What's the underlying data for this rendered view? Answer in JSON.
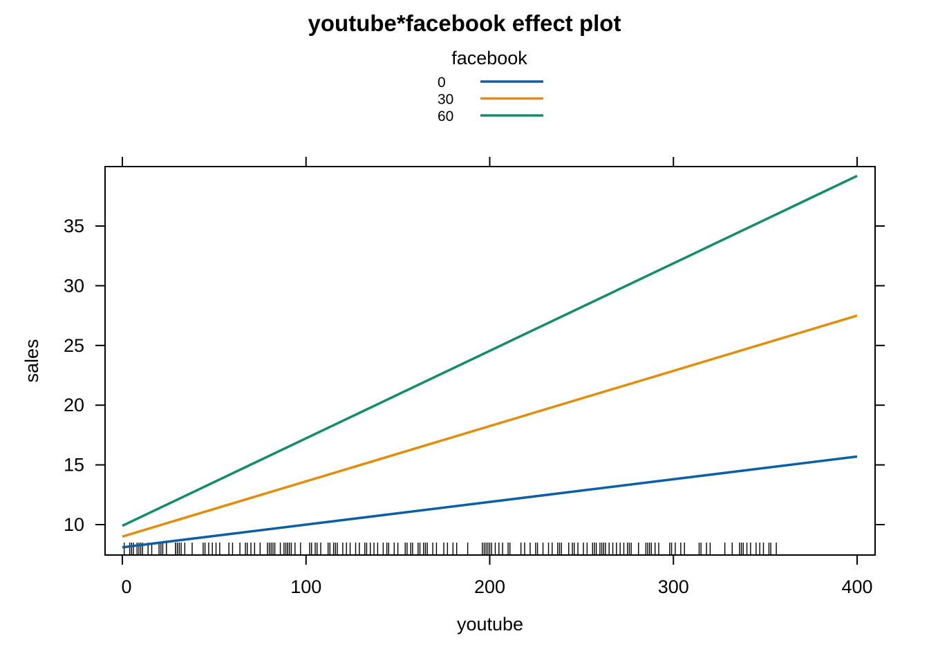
{
  "chart_data": {
    "type": "line",
    "title": "youtube*facebook effect plot",
    "xlabel": "youtube",
    "ylabel": "sales",
    "xlim": [
      -10,
      410
    ],
    "ylim": [
      7.4,
      40
    ],
    "x_ticks": [
      0,
      100,
      200,
      300,
      400
    ],
    "y_ticks": [
      10,
      15,
      20,
      25,
      30,
      35
    ],
    "grid": false,
    "legend": {
      "title": "facebook",
      "placement": "top",
      "entries": [
        "0",
        "30",
        "60"
      ]
    },
    "series": [
      {
        "name": "0",
        "color": "#0B5FA5",
        "x": [
          0,
          400
        ],
        "y": [
          8.1,
          15.7
        ]
      },
      {
        "name": "30",
        "color": "#E08E0B",
        "x": [
          0,
          400
        ],
        "y": [
          9.0,
          27.5
        ]
      },
      {
        "name": "60",
        "color": "#138D62",
        "x": [
          0,
          400
        ],
        "y": [
          9.9,
          39.2
        ]
      }
    ],
    "rug_x": [
      1,
      4,
      5,
      6,
      8,
      9,
      10,
      11,
      14,
      16,
      20,
      21,
      22,
      24,
      29,
      29,
      30,
      31,
      32,
      34,
      38,
      44,
      45,
      47,
      49,
      51,
      53,
      58,
      60,
      64,
      67,
      68,
      70,
      72,
      75,
      79,
      80,
      81,
      82,
      83,
      86,
      88,
      89,
      90,
      90,
      91,
      92,
      94,
      97,
      102,
      103,
      105,
      106,
      108,
      112,
      113,
      115,
      116,
      117,
      120,
      122,
      124,
      127,
      129,
      132,
      133,
      135,
      137,
      139,
      142,
      144,
      145,
      148,
      150,
      154,
      155,
      157,
      158,
      161,
      162,
      164,
      165,
      166,
      169,
      171,
      175,
      177,
      180,
      182,
      188,
      196,
      197,
      198,
      199,
      200,
      201,
      203,
      205,
      207,
      210,
      211,
      217,
      219,
      222,
      225,
      226,
      229,
      232,
      234,
      237,
      238,
      239,
      243,
      245,
      246,
      248,
      251,
      253,
      256,
      257,
      258,
      260,
      261,
      262,
      263,
      265,
      267,
      269,
      271,
      273,
      275,
      276,
      277,
      281,
      285,
      286,
      287,
      288,
      290,
      292,
      298,
      299,
      301,
      304,
      306,
      314,
      315,
      318,
      320,
      328,
      332,
      336,
      337,
      338,
      340,
      342,
      345,
      347,
      349,
      352,
      353,
      356
    ]
  }
}
